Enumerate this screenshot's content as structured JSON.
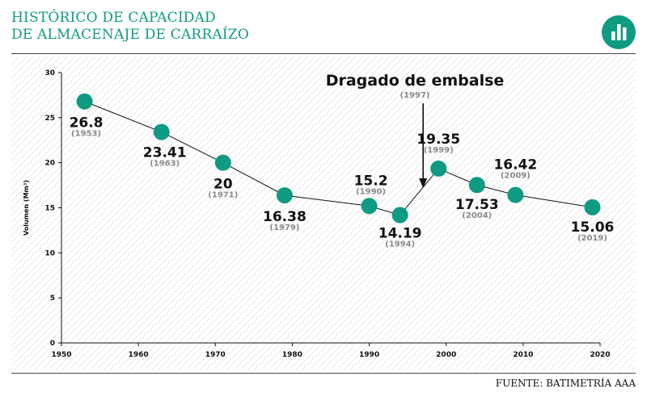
{
  "title_lines": [
    "HISTÓRICO DE CAPACIDAD",
    "DE ALMACENAJE DE CARRAÍZO"
  ],
  "logo_icon": "bar-chart-icon",
  "source": "FUENTE: BATIMETRÍA AAA",
  "colors": {
    "accent": "#0f9a82",
    "text": "#111111",
    "year_label": "#8a8a8a",
    "stripes": "#ececec"
  },
  "annotation": {
    "label": "Dragado de embalse",
    "year_label": "(1997)"
  },
  "chart_data": {
    "type": "line",
    "title": "",
    "xlabel": "",
    "ylabel": "Volumen (Mm³)",
    "xlim": [
      1950,
      2020
    ],
    "ylim": [
      0,
      30
    ],
    "x_ticks": [
      1950,
      1960,
      1970,
      1980,
      1990,
      2000,
      2010,
      2020
    ],
    "y_ticks": [
      0,
      5,
      10,
      15,
      20,
      25,
      30
    ],
    "grid": false,
    "points": [
      {
        "x": 1953,
        "y": 26.8,
        "value_label": "26.8",
        "year_label": "(1953)"
      },
      {
        "x": 1963,
        "y": 23.41,
        "value_label": "23.41",
        "year_label": "(1963)"
      },
      {
        "x": 1971,
        "y": 20,
        "value_label": "20",
        "year_label": "(1971)"
      },
      {
        "x": 1979,
        "y": 16.38,
        "value_label": "16.38",
        "year_label": "(1979)"
      },
      {
        "x": 1990,
        "y": 15.2,
        "value_label": "15.2",
        "year_label": "(1990)"
      },
      {
        "x": 1994,
        "y": 14.19,
        "value_label": "14.19",
        "year_label": "(1994)"
      },
      {
        "x": 1999,
        "y": 19.35,
        "value_label": "19.35",
        "year_label": "(1999)"
      },
      {
        "x": 2004,
        "y": 17.53,
        "value_label": "17.53",
        "year_label": "(2004)"
      },
      {
        "x": 2009,
        "y": 16.42,
        "value_label": "16.42",
        "year_label": "(2009)"
      },
      {
        "x": 2019,
        "y": 15.06,
        "value_label": "15.06",
        "year_label": "(2019)"
      }
    ],
    "annotations": [
      {
        "x": 1997,
        "text": "Dragado de embalse",
        "year_label": "(1997)"
      }
    ]
  }
}
